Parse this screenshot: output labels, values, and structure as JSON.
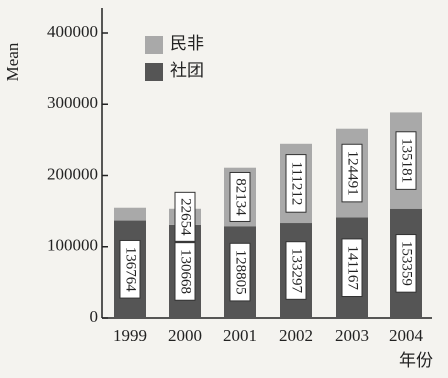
{
  "chart_data": {
    "type": "stacked_bar",
    "y_label": "Mean",
    "x_label": "年份",
    "categories": [
      "1999",
      "2000",
      "2001",
      "2002",
      "2003",
      "2004"
    ],
    "series": [
      {
        "name": "社团",
        "color": "#555555",
        "values": [
          136764,
          130668,
          128805,
          133297,
          141167,
          153359
        ]
      },
      {
        "name": "民非",
        "color": "#a9a9a9",
        "values": [
          18000,
          22654,
          82134,
          111212,
          124491,
          135181
        ],
        "value_labels": [
          null,
          "22654",
          "82134",
          "111212",
          "124491",
          "135181"
        ]
      }
    ],
    "ylim": [
      0,
      400000
    ],
    "yticks": [
      0,
      100000,
      200000,
      300000,
      400000
    ],
    "legend": "upper left"
  }
}
